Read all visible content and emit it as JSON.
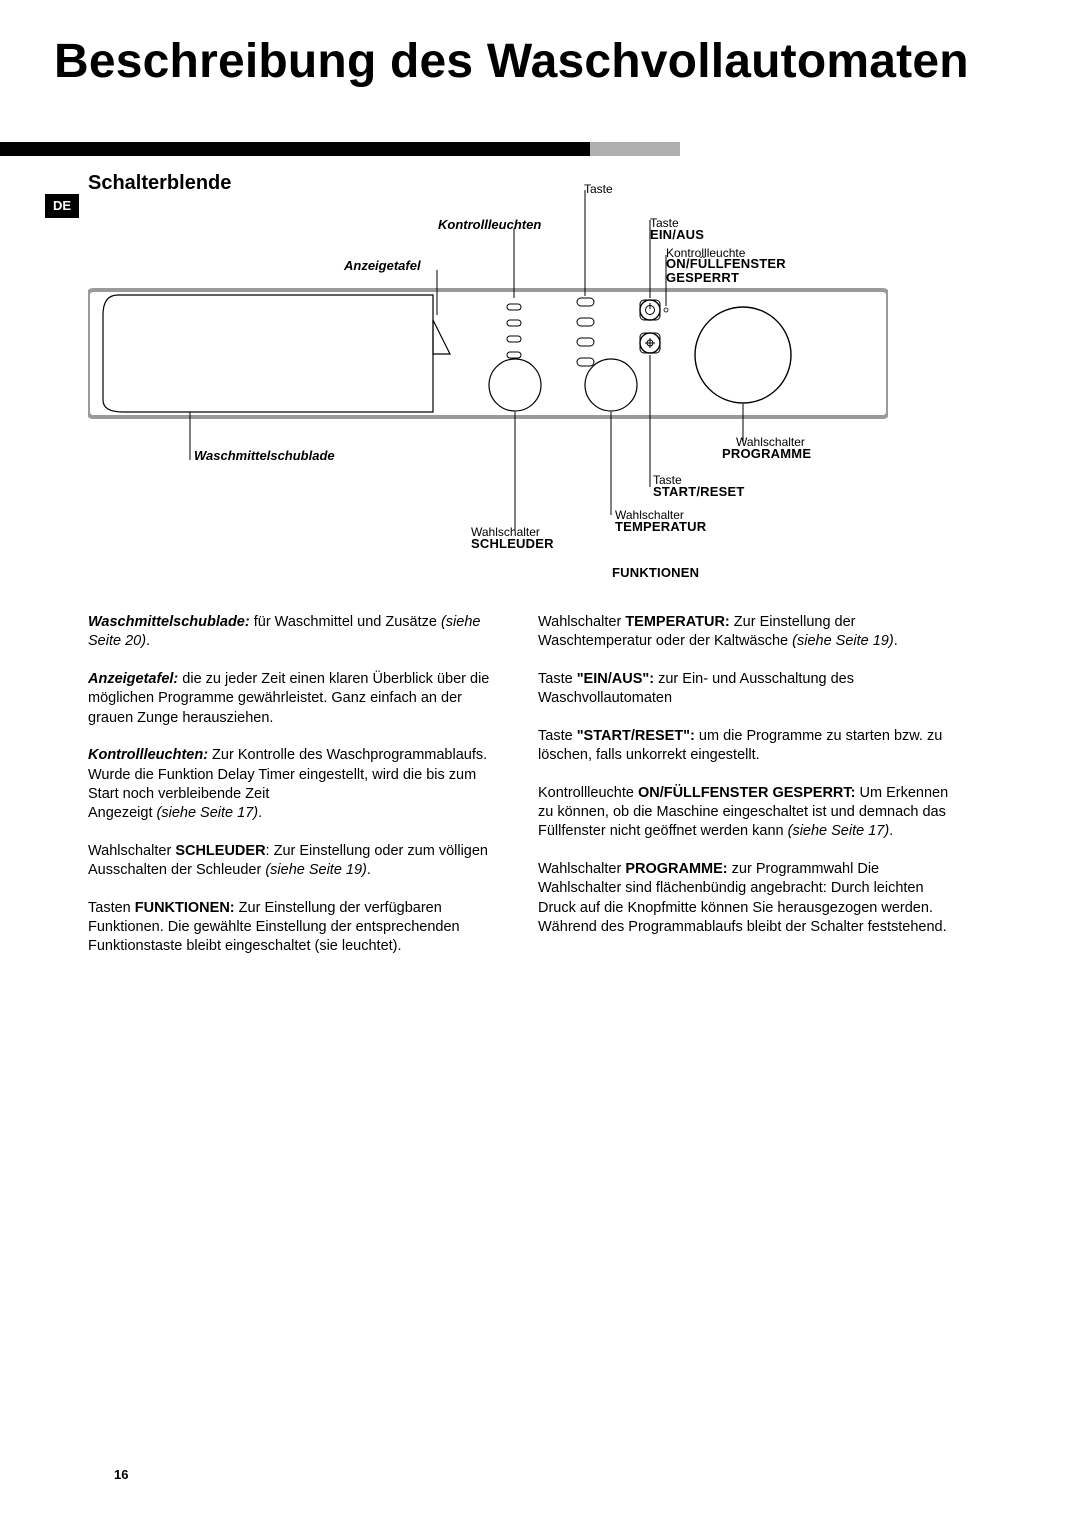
{
  "title": "Beschreibung des Waschvollautomaten",
  "language_tab": "DE",
  "section_title": "Schalterblende",
  "diagram": {
    "labels": {
      "kontrollleuchten": "Kontrollleuchten",
      "anzeigetafel": "Anzeigetafel",
      "waschmittelschublade": "Waschmittelschublade",
      "taste_prefix": "Taste",
      "wahlschalter_prefix": "Wahlschalter",
      "kontrollleuchte_prefix": "Kontrollleuchte",
      "funktionen": "FUNKTIONEN",
      "ein_aus": "EIN/AUS",
      "on_fullfenster": "ON/FÜLLFENSTER GESPERRT",
      "programme": "PROGRAMME",
      "start_reset": "START/RESET",
      "temperatur": "TEMPERATUR",
      "schleuder": "SCHLEUDER"
    },
    "colors": {
      "panel_border": "#9a9a9a",
      "panel_fill": "#ffffff",
      "stroke": "#000000"
    }
  },
  "left_column": [
    {
      "bold_italic": "Waschmittelschublade:",
      "text": " für Waschmittel und Zusätze ",
      "italic_suffix": "(siehe Seite 20)",
      "after": "."
    },
    {
      "bold_italic": "Anzeigetafel:",
      "text": " die zu jeder Zeit einen klaren Überblick über die möglichen Programme gewährleistet. Ganz einfach an der grauen Zunge herausziehen."
    },
    {
      "bold_italic": "Kontrollleuchten:",
      "text": " Zur Kontrolle des Wasch­programmablaufs.",
      "br": true,
      "text2": "Wurde die Funktion Delay Timer eingestellt, wird  die bis zum Start noch verbleibende Zeit",
      "br2": true,
      "text3": "Angezeigt ",
      "italic_suffix": "(siehe Seite 17)",
      "after": "."
    },
    {
      "pre": "Wahlschalter ",
      "bold": "SCHLEUDER",
      "text": ":  Zur Einstellung oder zum völligen Ausschalten der Schleuder ",
      "italic_suffix": "(siehe Seite 19)",
      "after": "."
    },
    {
      "pre": "Tasten ",
      "bold": "FUNKTIONEN:",
      "text": " Zur Einstellung der verfügbaren Funktionen. Die  gewählte Einstellung der entsprechen­den Funktionstaste bleibt eingeschaltet (sie leuchtet)."
    }
  ],
  "right_column": [
    {
      "pre": "Wahlschalter ",
      "bold": "TEMPERATUR:",
      "text": " Zur Einstellung der Waschtemperatur oder der Kaltwäsche ",
      "italic_suffix": "(siehe Seite 19)",
      "after": "."
    },
    {
      "pre": "Taste ",
      "bold": "\"EIN/AUS\":",
      "text": " zur Ein- und Ausschaltung des Waschvollautomaten"
    },
    {
      "pre": "Taste ",
      "bold": "\"START/RESET\":",
      "text": " um die Programme zu starten bzw. zu löschen, falls unkorrekt eingestellt."
    },
    {
      "pre": "Kontrollleuchte ",
      "bold": "ON/FÜLLFENSTER GESPERRT:",
      "text": " Um Erkennen zu können, ob die Maschine eingeschaltet ist und demnach das Füllfenster nicht geöffnet werden kann ",
      "italic_suffix": "(siehe Seite 17)",
      "after": "."
    },
    {
      "pre": "Wahlschalter ",
      "bold": "PROGRAMME:",
      "text": " zur Programmwahl Die Wahlschalter sind flächenbündig angebracht: Durch leichten Druck auf die Knopfmitte können Sie heraus­gezogen werden. Während des Programmablaufs bleibt der Schalter feststehend."
    }
  ],
  "page_number": "16"
}
